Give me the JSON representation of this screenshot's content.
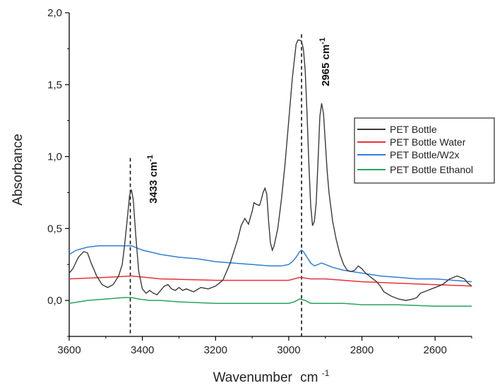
{
  "chart_data": {
    "type": "line",
    "title": "",
    "xlabel": "Wavenumber",
    "xlabel_unit": "cm",
    "xlabel_unit_sup": "-1",
    "ylabel": "Absorbance",
    "xlim": [
      3600,
      2500
    ],
    "ylim": [
      -0.25,
      2.0
    ],
    "x_reversed": true,
    "grid": false,
    "legend_position": "right",
    "x_ticks": [
      3600,
      3400,
      3200,
      3000,
      2800,
      2600
    ],
    "x_tick_labels": [
      "3600",
      "3400",
      "3200",
      "3000",
      "2800",
      "2600"
    ],
    "y_ticks": [
      0.0,
      0.5,
      1.0,
      1.5,
      2.0
    ],
    "y_tick_labels": [
      "0,0",
      "0,5",
      "1,0",
      "1,5",
      "2,0"
    ],
    "series": [
      {
        "name": "PET Bottle",
        "color": "#3a3a3a",
        "x": [
          3600,
          3590,
          3575,
          3560,
          3550,
          3540,
          3525,
          3510,
          3495,
          3480,
          3465,
          3455,
          3448,
          3440,
          3435,
          3430,
          3425,
          3418,
          3410,
          3400,
          3390,
          3380,
          3370,
          3360,
          3350,
          3340,
          3330,
          3320,
          3310,
          3300,
          3290,
          3280,
          3260,
          3240,
          3220,
          3200,
          3180,
          3160,
          3140,
          3130,
          3120,
          3110,
          3100,
          3095,
          3090,
          3080,
          3075,
          3070,
          3065,
          3060,
          3055,
          3050,
          3045,
          3040,
          3030,
          3020,
          3010,
          3000,
          2990,
          2980,
          2975,
          2970,
          2965,
          2960,
          2955,
          2950,
          2945,
          2940,
          2935,
          2930,
          2925,
          2920,
          2915,
          2910,
          2905,
          2900,
          2895,
          2890,
          2880,
          2870,
          2860,
          2850,
          2840,
          2830,
          2820,
          2810,
          2800,
          2790,
          2780,
          2770,
          2760,
          2750,
          2740,
          2720,
          2700,
          2680,
          2660,
          2650,
          2640,
          2620,
          2600,
          2580,
          2560,
          2540,
          2520,
          2510,
          2500
        ],
        "y": [
          0.19,
          0.22,
          0.3,
          0.34,
          0.33,
          0.26,
          0.17,
          0.11,
          0.09,
          0.11,
          0.17,
          0.25,
          0.4,
          0.6,
          0.73,
          0.77,
          0.7,
          0.45,
          0.2,
          0.08,
          0.05,
          0.07,
          0.05,
          0.04,
          0.07,
          0.1,
          0.11,
          0.08,
          0.07,
          0.09,
          0.07,
          0.08,
          0.06,
          0.09,
          0.08,
          0.1,
          0.14,
          0.26,
          0.42,
          0.52,
          0.57,
          0.53,
          0.62,
          0.68,
          0.67,
          0.66,
          0.7,
          0.75,
          0.78,
          0.74,
          0.55,
          0.4,
          0.35,
          0.38,
          0.5,
          0.7,
          0.95,
          1.25,
          1.55,
          1.78,
          1.81,
          1.81,
          1.8,
          1.75,
          1.6,
          1.3,
          0.95,
          0.66,
          0.52,
          0.55,
          0.68,
          0.97,
          1.28,
          1.37,
          1.3,
          1.1,
          0.9,
          0.75,
          0.55,
          0.42,
          0.32,
          0.25,
          0.21,
          0.2,
          0.21,
          0.24,
          0.22,
          0.19,
          0.17,
          0.15,
          0.13,
          0.1,
          0.06,
          0.03,
          0.01,
          0.0,
          0.01,
          0.02,
          0.05,
          0.07,
          0.09,
          0.11,
          0.15,
          0.17,
          0.15,
          0.12,
          0.1
        ]
      },
      {
        "name": "PET Bottle Water",
        "color": "#e8323a",
        "x": [
          3600,
          3500,
          3430,
          3350,
          3200,
          3050,
          3000,
          2970,
          2940,
          2900,
          2800,
          2700,
          2600,
          2500
        ],
        "y": [
          0.15,
          0.16,
          0.17,
          0.15,
          0.14,
          0.14,
          0.14,
          0.16,
          0.15,
          0.15,
          0.13,
          0.12,
          0.11,
          0.1
        ]
      },
      {
        "name": "PET Bottle/W2x",
        "color": "#2f7fd8",
        "x": [
          3600,
          3580,
          3550,
          3520,
          3500,
          3470,
          3440,
          3430,
          3420,
          3400,
          3350,
          3300,
          3250,
          3200,
          3150,
          3100,
          3050,
          3020,
          3000,
          2990,
          2980,
          2970,
          2965,
          2960,
          2950,
          2940,
          2930,
          2920,
          2910,
          2900,
          2880,
          2850,
          2800,
          2750,
          2700,
          2650,
          2600,
          2550,
          2500
        ],
        "y": [
          0.32,
          0.35,
          0.37,
          0.38,
          0.38,
          0.38,
          0.38,
          0.38,
          0.37,
          0.35,
          0.32,
          0.3,
          0.29,
          0.27,
          0.26,
          0.25,
          0.24,
          0.24,
          0.25,
          0.27,
          0.3,
          0.34,
          0.35,
          0.34,
          0.3,
          0.26,
          0.24,
          0.25,
          0.26,
          0.25,
          0.23,
          0.21,
          0.19,
          0.17,
          0.16,
          0.15,
          0.15,
          0.14,
          0.13
        ]
      },
      {
        "name": "PET Bottle Ethanol",
        "color": "#2aa35f",
        "x": [
          3600,
          3550,
          3500,
          3450,
          3430,
          3410,
          3380,
          3350,
          3300,
          3200,
          3100,
          3000,
          2985,
          2970,
          2955,
          2940,
          2900,
          2850,
          2800,
          2700,
          2600,
          2500
        ],
        "y": [
          -0.02,
          0.0,
          0.01,
          0.02,
          0.02,
          0.01,
          0.0,
          0.0,
          -0.01,
          -0.02,
          -0.02,
          -0.02,
          -0.01,
          0.01,
          0.0,
          -0.02,
          -0.02,
          -0.02,
          -0.03,
          -0.03,
          -0.04,
          -0.04
        ]
      }
    ],
    "reference_lines": [
      {
        "x": 3433,
        "y_top": 0.99
      },
      {
        "x": 2965,
        "y_top": 1.85
      }
    ],
    "annotations": [
      {
        "text": "3433 cm",
        "sup": "-1"
      },
      {
        "text": "2965 cm",
        "sup": "-1"
      }
    ]
  }
}
